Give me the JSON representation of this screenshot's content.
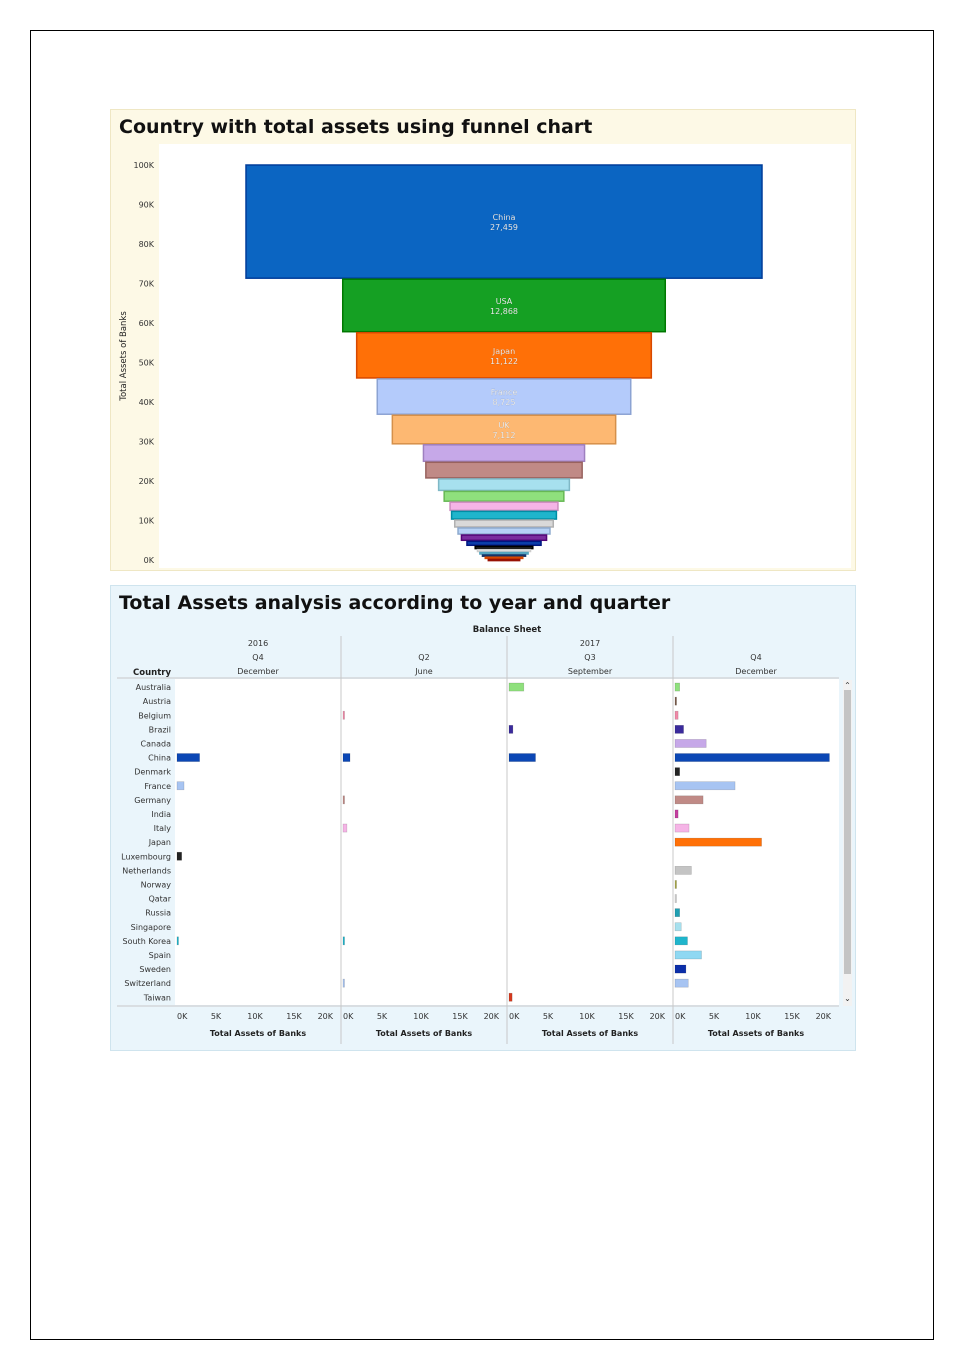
{
  "chart_data": [
    {
      "type": "funnel",
      "title": "Country with total assets using funnel chart",
      "ylabel": "Total Assets of Banks",
      "ylim": [
        0,
        100000
      ],
      "yticks": [
        "100K",
        "90K",
        "80K",
        "70K",
        "60K",
        "50K",
        "40K",
        "30K",
        "20K",
        "10K",
        "0K"
      ],
      "stages": [
        {
          "label": "China",
          "value": 27459,
          "value_label": "27,459",
          "color": "#0b65c2"
        },
        {
          "label": "USA",
          "value": 12868,
          "value_label": "12,868",
          "color": "#15a023"
        },
        {
          "label": "Japan",
          "value": 11122,
          "value_label": "11,122",
          "color": "#ff7007"
        },
        {
          "label": "France",
          "value": 8725,
          "value_label": "8,725",
          "color": "#b4cbfb"
        },
        {
          "label": "UK",
          "value": 7112,
          "value_label": "7,112",
          "color": "#fdb872"
        },
        {
          "label": "",
          "value": 4200,
          "color": "#c6a8e8"
        },
        {
          "label": "",
          "value": 4000,
          "color": "#c08a86"
        },
        {
          "label": "",
          "value": 3000,
          "color": "#a7e0ee"
        },
        {
          "label": "",
          "value": 2600,
          "color": "#8fe07d"
        },
        {
          "label": "",
          "value": 2200,
          "color": "#f5b4e6"
        },
        {
          "label": "",
          "value": 2100,
          "color": "#1fb5cc"
        },
        {
          "label": "",
          "value": 1900,
          "color": "#d9d9d9"
        },
        {
          "label": "",
          "value": 1700,
          "color": "#b6d2f6"
        },
        {
          "label": "",
          "value": 1500,
          "color": "#7a2d9e"
        },
        {
          "label": "",
          "value": 1200,
          "color": "#0b3ea9"
        },
        {
          "label": "",
          "value": 800,
          "color": "#222222"
        },
        {
          "label": "",
          "value": 700,
          "color": "#f4f4f4"
        },
        {
          "label": "",
          "value": 600,
          "color": "#7ccce7"
        },
        {
          "label": "",
          "value": 500,
          "color": "#3e5c90"
        },
        {
          "label": "",
          "value": 400,
          "color": "#ff7007"
        },
        {
          "label": "",
          "value": 300,
          "color": "#c0392b"
        }
      ]
    },
    {
      "type": "bar",
      "title": "Total Assets analysis according to year and quarter",
      "header": "Balance Sheet",
      "row_header": "Country",
      "xlabel": "Total Assets of Banks",
      "xlim": [
        0,
        20000
      ],
      "xticks": [
        "0K",
        "5K",
        "10K",
        "15K",
        "20K"
      ],
      "categories": [
        "Australia",
        "Austria",
        "Belgium",
        "Brazil",
        "Canada",
        "China",
        "Denmark",
        "France",
        "Germany",
        "India",
        "Italy",
        "Japan",
        "Luxembourg",
        "Netherlands",
        "Norway",
        "Qatar",
        "Russia",
        "Singapore",
        "South Korea",
        "Spain",
        "Sweden",
        "Switzerland",
        "Taiwan"
      ],
      "colors": [
        "#8fe07d",
        "#7a5c4a",
        "#f08aa8",
        "#3a2a9c",
        "#c6a8e8",
        "#0b47b5",
        "#222222",
        "#a7c4f2",
        "#c08a86",
        "#c43fa0",
        "#f5b4e6",
        "#ff7007",
        "#222222",
        "#c4c4c4",
        "#a8a848",
        "#d0d0d0",
        "#1f9fb2",
        "#a7e0ee",
        "#1fb5cc",
        "#8fd8f2",
        "#0b2ea9",
        "#a7c4f2",
        "#d63a1e"
      ],
      "columns": [
        {
          "year": "2016",
          "quarter": "Q4",
          "month": "December",
          "values": [
            null,
            null,
            null,
            null,
            null,
            2900,
            null,
            900,
            null,
            null,
            null,
            null,
            600,
            null,
            null,
            null,
            null,
            null,
            150,
            null,
            null,
            null,
            null
          ]
        },
        {
          "year": "",
          "quarter": "Q2",
          "month": "June",
          "values": [
            null,
            null,
            200,
            null,
            null,
            900,
            null,
            null,
            200,
            null,
            500,
            null,
            null,
            null,
            null,
            null,
            null,
            null,
            200,
            null,
            null,
            150,
            null
          ]
        },
        {
          "year": "2017",
          "quarter": "Q3",
          "month": "September",
          "values": [
            1900,
            null,
            null,
            500,
            null,
            3400,
            null,
            null,
            null,
            null,
            null,
            null,
            null,
            null,
            null,
            null,
            null,
            null,
            null,
            null,
            null,
            null,
            400
          ]
        },
        {
          "year": "",
          "quarter": "Q4",
          "month": "December",
          "values": [
            600,
            200,
            400,
            1100,
            4000,
            19800,
            600,
            7700,
            3600,
            400,
            1800,
            11100,
            null,
            2100,
            200,
            100,
            600,
            800,
            1600,
            3400,
            1400,
            1700,
            null
          ]
        }
      ]
    }
  ]
}
